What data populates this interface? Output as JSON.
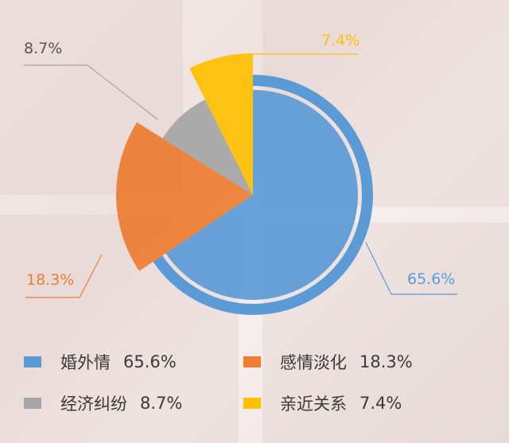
{
  "chart_data": {
    "type": "pie",
    "categories": [
      "婚外情",
      "感情淡化",
      "经济纠纷",
      "亲近关系"
    ],
    "values": [
      65.6,
      18.3,
      8.7,
      7.4
    ],
    "data_labels": [
      "65.6%",
      "18.3%",
      "8.7%",
      "7.4%"
    ],
    "legend_values": [
      "65.6%",
      "18.3%",
      "8.7%",
      "7.4%"
    ],
    "colors": [
      "#5b9bd5",
      "#ed7d31",
      "#a5a5a5",
      "#ffc000"
    ],
    "title": "",
    "legend_placement": "bottom"
  }
}
